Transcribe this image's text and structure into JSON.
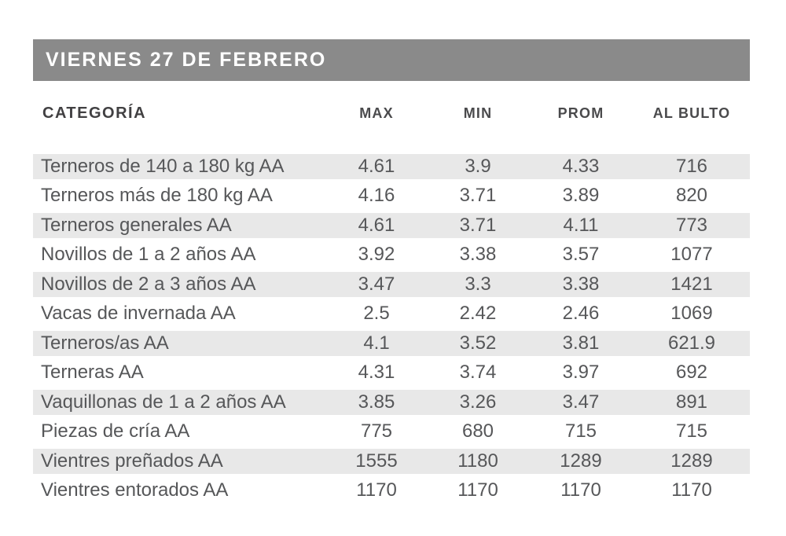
{
  "title_bar": {
    "text": "VIERNES 27 DE FEBRERO"
  },
  "colors": {
    "title_bar_bg": "#8a8a8a",
    "title_text": "#ffffff",
    "stripe": "#e8e8e8",
    "body_text": "#565759",
    "header_text": "#414042"
  },
  "chart_data": {
    "type": "table",
    "title": "VIERNES 27 DE FEBRERO",
    "columns": [
      "CATEGORÍA",
      "MAX",
      "MIN",
      "PROM",
      "AL BULTO"
    ],
    "rows": [
      [
        "Terneros de 140 a 180 kg AA",
        4.61,
        3.9,
        4.33,
        716
      ],
      [
        "Terneros más de 180 kg AA",
        4.16,
        3.71,
        3.89,
        820
      ],
      [
        "Terneros generales AA",
        4.61,
        3.71,
        4.11,
        773
      ],
      [
        "Novillos de 1 a 2 años AA",
        3.92,
        3.38,
        3.57,
        1077
      ],
      [
        "Novillos de 2 a 3 años AA",
        3.47,
        3.3,
        3.38,
        1421
      ],
      [
        "Vacas de invernada AA",
        2.5,
        2.42,
        2.46,
        1069
      ],
      [
        "Terneros/as AA",
        4.1,
        3.52,
        3.81,
        621.9
      ],
      [
        "Terneras AA",
        4.31,
        3.74,
        3.97,
        692
      ],
      [
        "Vaquillonas de 1 a 2 años AA",
        3.85,
        3.26,
        3.47,
        891
      ],
      [
        "Piezas de cría AA",
        775,
        680,
        715,
        715
      ],
      [
        "Vientres preñados AA",
        1555,
        1180,
        1289,
        1289
      ],
      [
        "Vientres entorados AA",
        1170,
        1170,
        1170,
        1170
      ]
    ],
    "layout": {
      "striped_rows": "odd",
      "value_alignment": "center",
      "grid": false
    }
  }
}
